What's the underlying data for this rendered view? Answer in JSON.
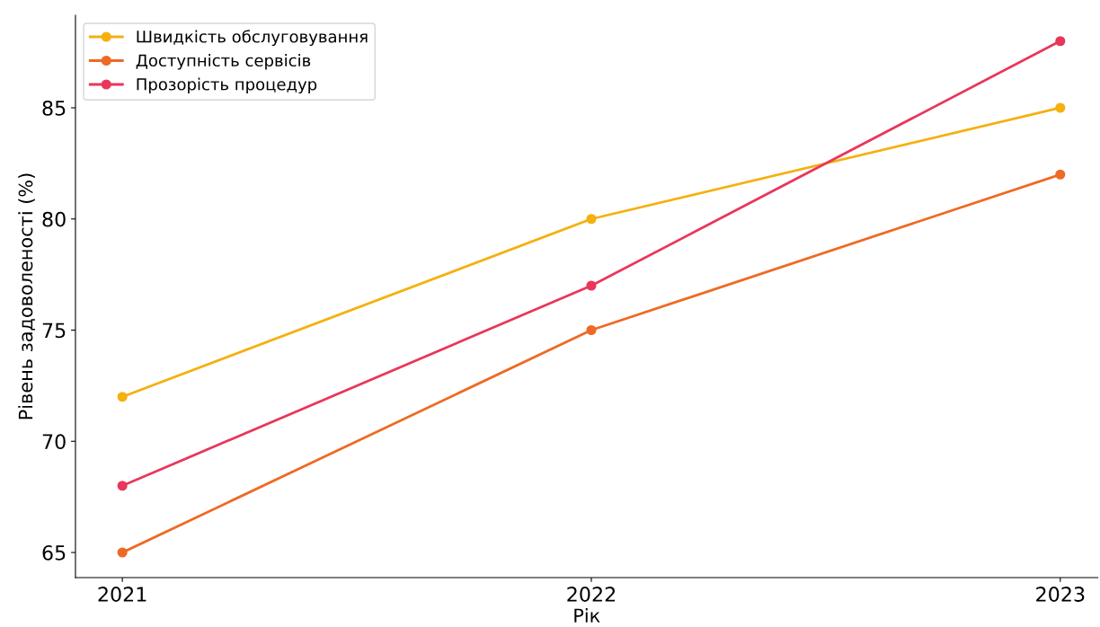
{
  "chart_data": {
    "type": "line",
    "xlabel": "Рік",
    "ylabel": "Рівень задоволеності (%)",
    "x": [
      2021,
      2022,
      2023
    ],
    "series": [
      {
        "name": "Швидкість обслуговування",
        "color": "#f5b00e",
        "values": [
          72,
          80,
          85
        ]
      },
      {
        "name": "Доступність сервісів",
        "color": "#ee6a24",
        "values": [
          65,
          75,
          82
        ]
      },
      {
        "name": "Прозорість процедур",
        "color": "#e9365b",
        "values": [
          68,
          77,
          88
        ]
      }
    ],
    "xlim": [
      2020.9,
      2023.08
    ],
    "xticks": [
      2021,
      2022,
      2023
    ],
    "ylim": [
      63.87,
      89.16
    ],
    "yticks": [
      65,
      70,
      75,
      80,
      85
    ],
    "grid": false,
    "legend": "top left",
    "marker": "circle",
    "line_style": "solid"
  }
}
